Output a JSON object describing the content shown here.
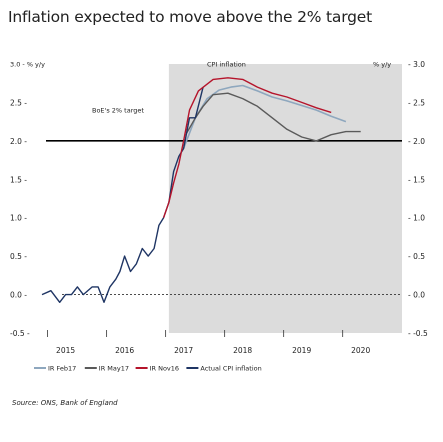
{
  "header": {
    "title": "Inflation expected to move above the 2% target",
    "source": "Source: ONS, Bank of England"
  },
  "chart_data": {
    "type": "line",
    "left_axis_label": "3.0 - % y/y",
    "right_axis_label": "% y/y",
    "shaded_region_label": "CPI inflation",
    "reference_line_label": "BoE's 2% target",
    "y_ticks": [
      "3.0",
      "2.5",
      "2.0",
      "1.5",
      "1.0",
      "0.5",
      "0.0",
      "-0.5"
    ],
    "y_tick_values": [
      3.0,
      2.5,
      2.0,
      1.5,
      1.0,
      0.5,
      0.0,
      -0.5
    ],
    "ylim": [
      -0.5,
      3.0
    ],
    "x_ticks": [
      "2015",
      "2016",
      "2017",
      "2018",
      "2019",
      "2020"
    ],
    "x_tick_values": [
      2015.0,
      2016.0,
      2017.0,
      2018.0,
      2019.0,
      2020.0
    ],
    "xlim": [
      2014.6,
      2020.7
    ],
    "shaded_from": 2016.75,
    "target": 2.0,
    "colors": {
      "ir_feb17": "#8ea7be",
      "ir_may17": "#5a5a5a",
      "ir_nov16": "#b5142b",
      "actual": "#1f3564",
      "shade": "#dcdcdc",
      "target": "#000000"
    },
    "series": [
      {
        "name": "Actual CPI inflation",
        "key": "actual",
        "x": [
          2014.6,
          2014.75,
          2014.9,
          2015.0,
          2015.1,
          2015.2,
          2015.3,
          2015.45,
          2015.55,
          2015.65,
          2015.75,
          2015.85,
          2015.92,
          2016.0,
          2016.1,
          2016.2,
          2016.3,
          2016.4,
          2016.5,
          2016.58,
          2016.66,
          2016.75,
          2016.83,
          2016.92,
          2017.0,
          2017.1,
          2017.2,
          2017.33
        ],
        "y": [
          0.0,
          0.05,
          -0.1,
          0.0,
          0.0,
          0.1,
          0.0,
          0.1,
          0.1,
          -0.1,
          0.1,
          0.2,
          0.3,
          0.5,
          0.3,
          0.4,
          0.6,
          0.5,
          0.6,
          0.9,
          1.0,
          1.2,
          1.6,
          1.8,
          1.9,
          2.3,
          2.3,
          2.7
        ]
      },
      {
        "name": "IR Nov16",
        "key": "ir_nov16",
        "x": [
          2016.66,
          2016.75,
          2016.83,
          2016.92,
          2017.0,
          2017.1,
          2017.25,
          2017.5,
          2017.75,
          2018.0,
          2018.25,
          2018.5,
          2018.75,
          2019.0,
          2019.25,
          2019.5
        ],
        "y": [
          1.0,
          1.2,
          1.45,
          1.7,
          2.0,
          2.4,
          2.65,
          2.8,
          2.82,
          2.8,
          2.7,
          2.62,
          2.57,
          2.5,
          2.43,
          2.37
        ]
      },
      {
        "name": "IR Feb17",
        "key": "ir_feb17",
        "x": [
          2017.0,
          2017.2,
          2017.4,
          2017.6,
          2017.8,
          2018.0,
          2018.25,
          2018.5,
          2018.75,
          2019.0,
          2019.25,
          2019.5,
          2019.75
        ],
        "y": [
          1.9,
          2.3,
          2.55,
          2.66,
          2.7,
          2.72,
          2.65,
          2.57,
          2.52,
          2.46,
          2.4,
          2.32,
          2.25
        ]
      },
      {
        "name": "IR May17",
        "key": "ir_may17",
        "x": [
          2017.05,
          2017.2,
          2017.33,
          2017.5,
          2017.75,
          2018.0,
          2018.25,
          2018.5,
          2018.75,
          2019.0,
          2019.25,
          2019.5,
          2019.75,
          2020.0
        ],
        "y": [
          2.1,
          2.3,
          2.45,
          2.6,
          2.62,
          2.55,
          2.45,
          2.3,
          2.15,
          2.05,
          2.0,
          2.08,
          2.12,
          2.12
        ]
      }
    ],
    "legend": [
      {
        "label": "IR Feb17",
        "key": "ir_feb17"
      },
      {
        "label": "IR May17",
        "key": "ir_may17"
      },
      {
        "label": "IR Nov16",
        "key": "ir_nov16"
      },
      {
        "label": "Actual CPI inflation",
        "key": "actual"
      }
    ]
  }
}
